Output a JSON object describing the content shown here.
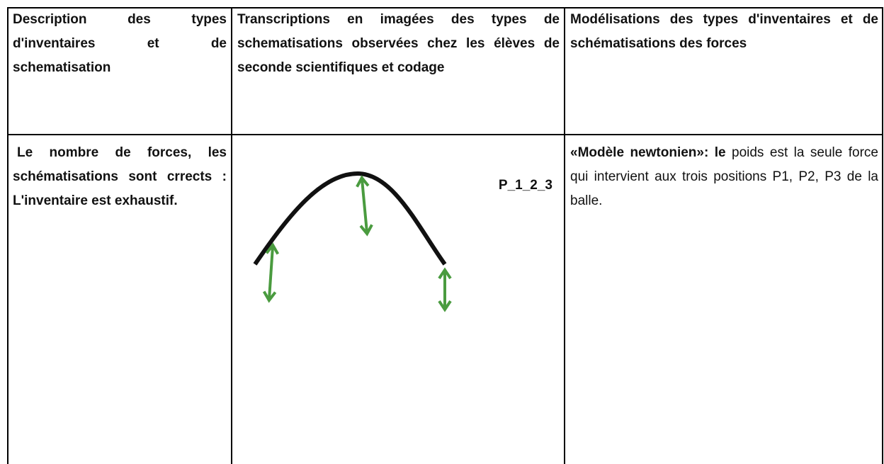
{
  "table": {
    "header": [
      "Description des types d'inventaires et de schematisation",
      "Transcriptions en imagées des types de schematisations observées chez les élèves de seconde scientifiques et codage",
      "Modélisations des types d'inventaires et de schématisations des forces"
    ],
    "row": {
      "description": "Le nombre de forces, les schématisations sont crrects : L'inventaire est exhaustif.",
      "code": "P_1_2_3",
      "model_bold": "«Modèle newtonien»: le",
      "model_text": " poids est la seule force qui intervient aux trois positions P1, P2, P3 de la balle."
    }
  }
}
